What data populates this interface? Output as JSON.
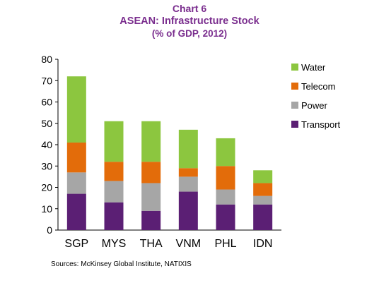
{
  "header": {
    "chart_label": "Chart 6",
    "title": "ASEAN: Infrastructure Stock",
    "subtitle": "(% of GDP, 2012)"
  },
  "footer": {
    "source": "Sources: McKinsey Global Institute, NATIXIS"
  },
  "chart_data": {
    "type": "bar",
    "stacked": true,
    "title": "ASEAN: Infrastructure Stock",
    "subtitle": "(% of GDP, 2012)",
    "xlabel": "",
    "ylabel": "",
    "ylim": [
      0,
      80
    ],
    "yticks": [
      0,
      10,
      20,
      30,
      40,
      50,
      60,
      70,
      80
    ],
    "categories": [
      "SGP",
      "MYS",
      "THA",
      "VNM",
      "PHL",
      "IDN"
    ],
    "series": [
      {
        "name": "Transport",
        "color": "#5b1f74",
        "values": [
          17,
          13,
          9,
          18,
          12,
          12
        ]
      },
      {
        "name": "Power",
        "color": "#a6a6a6",
        "values": [
          10,
          10,
          13,
          7,
          7,
          4
        ]
      },
      {
        "name": "Telecom",
        "color": "#e36c0a",
        "values": [
          14,
          9,
          10,
          4,
          11,
          6
        ]
      },
      {
        "name": "Water",
        "color": "#8cc63f",
        "values": [
          31,
          19,
          19,
          18,
          13,
          6
        ]
      }
    ],
    "legend_order": [
      "Water",
      "Telecom",
      "Power",
      "Transport"
    ],
    "legend_position": "right",
    "grid": false
  }
}
